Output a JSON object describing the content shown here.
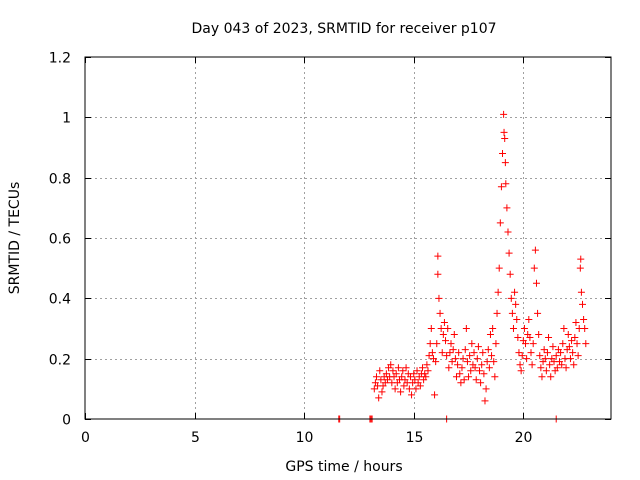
{
  "chart_data": {
    "type": "scatter",
    "title": "Day 043 of 2023, SRMTID for receiver p107",
    "xlabel": "GPS time / hours",
    "ylabel": "SRMTID / TECUs",
    "xlim": [
      0,
      24
    ],
    "ylim": [
      0,
      1.2
    ],
    "xticks": [
      0,
      5,
      10,
      15,
      20
    ],
    "xtick_labels": [
      "0",
      "5",
      "10",
      "15",
      "20"
    ],
    "yticks": [
      0,
      0.2,
      0.4,
      0.6,
      0.8,
      1.0,
      1.2
    ],
    "ytick_labels": [
      "0",
      "0.2",
      "0.4",
      "0.6",
      "0.8",
      "1",
      "1.2"
    ],
    "grid": true,
    "marker": "+",
    "marker_color": "#ff0000",
    "series": [
      {
        "name": "p107",
        "points": [
          [
            11.58,
            0.0
          ],
          [
            11.62,
            0.0
          ],
          [
            13.0,
            0.0
          ],
          [
            13.05,
            0.0
          ],
          [
            13.1,
            0.0
          ],
          [
            16.5,
            0.0
          ],
          [
            21.5,
            0.0
          ],
          [
            13.2,
            0.1
          ],
          [
            13.25,
            0.12
          ],
          [
            13.3,
            0.14
          ],
          [
            13.35,
            0.11
          ],
          [
            13.4,
            0.07
          ],
          [
            13.45,
            0.16
          ],
          [
            13.5,
            0.13
          ],
          [
            13.55,
            0.09
          ],
          [
            13.6,
            0.11
          ],
          [
            13.65,
            0.14
          ],
          [
            13.7,
            0.12
          ],
          [
            13.75,
            0.15
          ],
          [
            13.8,
            0.13
          ],
          [
            13.85,
            0.17
          ],
          [
            13.9,
            0.14
          ],
          [
            13.95,
            0.18
          ],
          [
            14.0,
            0.12
          ],
          [
            14.05,
            0.16
          ],
          [
            14.1,
            0.14
          ],
          [
            14.15,
            0.1
          ],
          [
            14.2,
            0.15
          ],
          [
            14.25,
            0.12
          ],
          [
            14.3,
            0.17
          ],
          [
            14.35,
            0.13
          ],
          [
            14.4,
            0.09
          ],
          [
            14.45,
            0.14
          ],
          [
            14.5,
            0.16
          ],
          [
            14.55,
            0.11
          ],
          [
            14.6,
            0.13
          ],
          [
            14.65,
            0.17
          ],
          [
            14.7,
            0.12
          ],
          [
            14.75,
            0.15
          ],
          [
            14.8,
            0.1
          ],
          [
            14.85,
            0.14
          ],
          [
            14.9,
            0.08
          ],
          [
            14.95,
            0.12
          ],
          [
            15.0,
            0.15
          ],
          [
            15.05,
            0.13
          ],
          [
            15.1,
            0.1
          ],
          [
            15.15,
            0.16
          ],
          [
            15.2,
            0.12
          ],
          [
            15.25,
            0.14
          ],
          [
            15.3,
            0.11
          ],
          [
            15.35,
            0.15
          ],
          [
            15.4,
            0.17
          ],
          [
            15.45,
            0.13
          ],
          [
            15.5,
            0.15
          ],
          [
            15.55,
            0.14
          ],
          [
            15.6,
            0.18
          ],
          [
            15.65,
            0.16
          ],
          [
            15.7,
            0.21
          ],
          [
            15.75,
            0.25
          ],
          [
            15.8,
            0.3
          ],
          [
            15.85,
            0.22
          ],
          [
            15.9,
            0.2
          ],
          [
            15.95,
            0.08
          ],
          [
            16.0,
            0.19
          ],
          [
            16.05,
            0.25
          ],
          [
            16.1,
            0.48
          ],
          [
            16.1,
            0.54
          ],
          [
            16.15,
            0.4
          ],
          [
            16.2,
            0.35
          ],
          [
            16.25,
            0.3
          ],
          [
            16.3,
            0.22
          ],
          [
            16.35,
            0.28
          ],
          [
            16.4,
            0.32
          ],
          [
            16.45,
            0.26
          ],
          [
            16.5,
            0.21
          ],
          [
            16.55,
            0.3
          ],
          [
            16.6,
            0.17
          ],
          [
            16.65,
            0.22
          ],
          [
            16.7,
            0.25
          ],
          [
            16.75,
            0.19
          ],
          [
            16.8,
            0.23
          ],
          [
            16.85,
            0.28
          ],
          [
            16.9,
            0.2
          ],
          [
            16.95,
            0.14
          ],
          [
            17.0,
            0.18
          ],
          [
            17.05,
            0.22
          ],
          [
            17.1,
            0.15
          ],
          [
            17.15,
            0.12
          ],
          [
            17.2,
            0.17
          ],
          [
            17.25,
            0.2
          ],
          [
            17.3,
            0.13
          ],
          [
            17.35,
            0.23
          ],
          [
            17.4,
            0.3
          ],
          [
            17.45,
            0.19
          ],
          [
            17.5,
            0.14
          ],
          [
            17.55,
            0.21
          ],
          [
            17.6,
            0.16
          ],
          [
            17.65,
            0.25
          ],
          [
            17.7,
            0.18
          ],
          [
            17.75,
            0.22
          ],
          [
            17.8,
            0.17
          ],
          [
            17.85,
            0.13
          ],
          [
            17.9,
            0.2
          ],
          [
            17.95,
            0.24
          ],
          [
            18.0,
            0.16
          ],
          [
            18.05,
            0.12
          ],
          [
            18.1,
            0.18
          ],
          [
            18.15,
            0.22
          ],
          [
            18.2,
            0.15
          ],
          [
            18.25,
            0.06
          ],
          [
            18.3,
            0.1
          ],
          [
            18.35,
            0.19
          ],
          [
            18.4,
            0.23
          ],
          [
            18.45,
            0.17
          ],
          [
            18.5,
            0.28
          ],
          [
            18.55,
            0.21
          ],
          [
            18.6,
            0.3
          ],
          [
            18.65,
            0.19
          ],
          [
            18.7,
            0.14
          ],
          [
            18.75,
            0.25
          ],
          [
            18.8,
            0.35
          ],
          [
            18.85,
            0.42
          ],
          [
            18.9,
            0.5
          ],
          [
            18.95,
            0.65
          ],
          [
            19.0,
            0.77
          ],
          [
            19.05,
            0.88
          ],
          [
            19.1,
            1.01
          ],
          [
            19.12,
            0.95
          ],
          [
            19.15,
            0.93
          ],
          [
            19.18,
            0.85
          ],
          [
            19.2,
            0.78
          ],
          [
            19.25,
            0.7
          ],
          [
            19.3,
            0.62
          ],
          [
            19.35,
            0.55
          ],
          [
            19.4,
            0.48
          ],
          [
            19.45,
            0.4
          ],
          [
            19.5,
            0.35
          ],
          [
            19.55,
            0.3
          ],
          [
            19.6,
            0.42
          ],
          [
            19.65,
            0.38
          ],
          [
            19.7,
            0.33
          ],
          [
            19.75,
            0.27
          ],
          [
            19.8,
            0.22
          ],
          [
            19.85,
            0.18
          ],
          [
            19.9,
            0.16
          ],
          [
            19.95,
            0.21
          ],
          [
            20.0,
            0.26
          ],
          [
            20.05,
            0.3
          ],
          [
            20.1,
            0.25
          ],
          [
            20.15,
            0.2
          ],
          [
            20.2,
            0.28
          ],
          [
            20.25,
            0.33
          ],
          [
            20.3,
            0.27
          ],
          [
            20.35,
            0.22
          ],
          [
            20.4,
            0.18
          ],
          [
            20.45,
            0.25
          ],
          [
            20.5,
            0.5
          ],
          [
            20.55,
            0.56
          ],
          [
            20.6,
            0.45
          ],
          [
            20.65,
            0.35
          ],
          [
            20.7,
            0.28
          ],
          [
            20.75,
            0.21
          ],
          [
            20.8,
            0.17
          ],
          [
            20.85,
            0.14
          ],
          [
            20.9,
            0.19
          ],
          [
            20.95,
            0.23
          ],
          [
            21.0,
            0.2
          ],
          [
            21.05,
            0.16
          ],
          [
            21.1,
            0.22
          ],
          [
            21.15,
            0.27
          ],
          [
            21.2,
            0.18
          ],
          [
            21.25,
            0.14
          ],
          [
            21.3,
            0.2
          ],
          [
            21.35,
            0.24
          ],
          [
            21.4,
            0.19
          ],
          [
            21.45,
            0.16
          ],
          [
            21.5,
            0.21
          ],
          [
            21.55,
            0.17
          ],
          [
            21.6,
            0.23
          ],
          [
            21.65,
            0.19
          ],
          [
            21.7,
            0.22
          ],
          [
            21.75,
            0.18
          ],
          [
            21.8,
            0.25
          ],
          [
            21.85,
            0.3
          ],
          [
            21.9,
            0.2
          ],
          [
            21.95,
            0.17
          ],
          [
            22.0,
            0.23
          ],
          [
            22.05,
            0.28
          ],
          [
            22.1,
            0.24
          ],
          [
            22.15,
            0.2
          ],
          [
            22.2,
            0.26
          ],
          [
            22.25,
            0.22
          ],
          [
            22.3,
            0.18
          ],
          [
            22.35,
            0.27
          ],
          [
            22.4,
            0.32
          ],
          [
            22.45,
            0.25
          ],
          [
            22.5,
            0.21
          ],
          [
            22.55,
            0.3
          ],
          [
            22.6,
            0.5
          ],
          [
            22.62,
            0.53
          ],
          [
            22.65,
            0.42
          ],
          [
            22.7,
            0.38
          ],
          [
            22.75,
            0.33
          ],
          [
            22.8,
            0.3
          ],
          [
            22.85,
            0.25
          ]
        ]
      }
    ]
  }
}
